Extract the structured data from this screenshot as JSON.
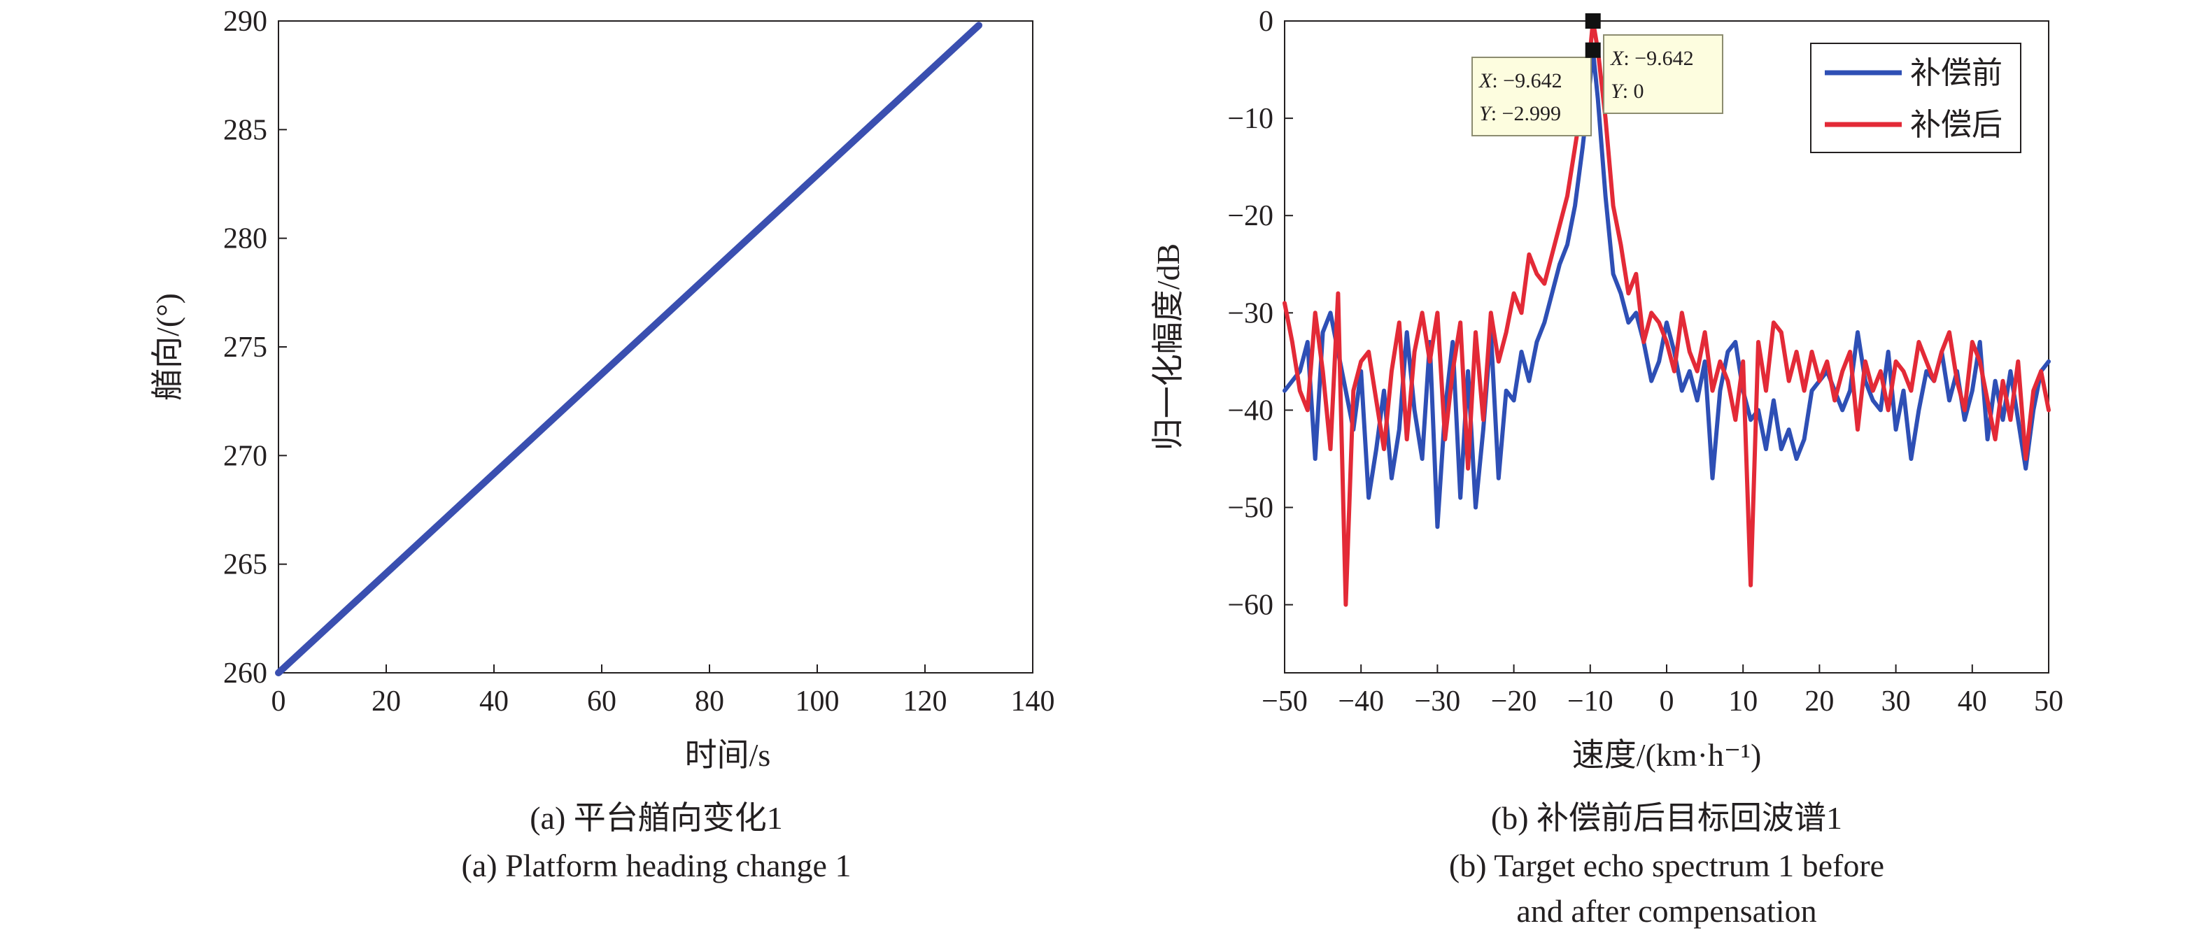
{
  "chart_data": [
    {
      "type": "line",
      "xlabel": "时间/s",
      "ylabel": "艏向/(°)",
      "xlim": [
        0,
        140
      ],
      "ylim": [
        260,
        290
      ],
      "x_ticks": [
        "0",
        "20",
        "40",
        "60",
        "80",
        "100",
        "120",
        "140"
      ],
      "y_ticks": [
        "260",
        "265",
        "270",
        "275",
        "280",
        "285",
        "290"
      ],
      "grid": false,
      "series": [
        {
          "color": "#3a4fb0",
          "x": [
            0,
            130
          ],
          "y": [
            260,
            289.8
          ]
        }
      ],
      "caption_zh": "(a) 平台艏向变化1",
      "caption_en": "(a) Platform heading change 1"
    },
    {
      "type": "line",
      "xlabel": "速度/(km·h⁻¹)",
      "ylabel": "归一化幅度/dB",
      "xlim": [
        -50,
        50
      ],
      "ylim": [
        -67,
        0
      ],
      "x_ticks": [
        "−50",
        "−40",
        "−30",
        "−20",
        "−10",
        "0",
        "10",
        "20",
        "30",
        "40",
        "50"
      ],
      "y_ticks": [
        "0",
        "−10",
        "−20",
        "−30",
        "−40",
        "−50",
        "−60"
      ],
      "grid": false,
      "legend_position": "top-right",
      "series": [
        {
          "name": "补偿前",
          "color": "#2e4fb5",
          "x": [
            -50,
            -49,
            -48,
            -47,
            -46,
            -45,
            -44,
            -43,
            -42,
            -41,
            -40,
            -39,
            -38,
            -37,
            -36,
            -35,
            -34,
            -33,
            -32,
            -31,
            -30,
            -29,
            -28,
            -27,
            -26,
            -25,
            -24,
            -23,
            -22,
            -21,
            -20,
            -19,
            -18,
            -17,
            -16,
            -15,
            -14,
            -13,
            -12,
            -11,
            -10,
            -9.642,
            -9,
            -8,
            -7,
            -6,
            -5,
            -4,
            -3,
            -2,
            -1,
            0,
            1,
            2,
            3,
            4,
            5,
            6,
            7,
            8,
            9,
            10,
            11,
            12,
            13,
            14,
            15,
            16,
            17,
            18,
            19,
            20,
            21,
            22,
            23,
            24,
            25,
            26,
            27,
            28,
            29,
            30,
            31,
            32,
            33,
            34,
            35,
            36,
            37,
            38,
            39,
            40,
            41,
            42,
            43,
            44,
            45,
            46,
            47,
            48,
            49,
            50
          ],
          "y": [
            -38,
            -37,
            -36,
            -33,
            -45,
            -32,
            -30,
            -34,
            -38,
            -42,
            -36,
            -49,
            -44,
            -38,
            -47,
            -42,
            -32,
            -40,
            -45,
            -33,
            -52,
            -40,
            -33,
            -49,
            -36,
            -50,
            -42,
            -32,
            -47,
            -38,
            -39,
            -34,
            -37,
            -33,
            -31,
            -28,
            -25,
            -23,
            -19,
            -13,
            -6,
            -3,
            -8,
            -18,
            -26,
            -28,
            -31,
            -30,
            -33,
            -37,
            -35,
            -31,
            -34,
            -38,
            -36,
            -39,
            -35,
            -47,
            -38,
            -34,
            -33,
            -38,
            -41,
            -40,
            -44,
            -39,
            -44,
            -42,
            -45,
            -43,
            -38,
            -37,
            -36,
            -38,
            -40,
            -38,
            -32,
            -37,
            -39,
            -40,
            -34,
            -42,
            -38,
            -45,
            -40,
            -36,
            -37,
            -34,
            -39,
            -36,
            -41,
            -38,
            -33,
            -43,
            -37,
            -41,
            -36,
            -41,
            -46,
            -40,
            -36,
            -35
          ]
        },
        {
          "name": "补偿后",
          "color": "#e32a37",
          "x": [
            -50,
            -49,
            -48,
            -47,
            -46,
            -45,
            -44,
            -43,
            -42,
            -41,
            -40,
            -39,
            -38,
            -37,
            -36,
            -35,
            -34,
            -33,
            -32,
            -31,
            -30,
            -29,
            -28,
            -27,
            -26,
            -25,
            -24,
            -23,
            -22,
            -21,
            -20,
            -19,
            -18,
            -17,
            -16,
            -15,
            -14,
            -13,
            -12,
            -11,
            -10,
            -9.642,
            -9,
            -8,
            -7,
            -6,
            -5,
            -4,
            -3,
            -2,
            -1,
            0,
            1,
            2,
            3,
            4,
            5,
            6,
            7,
            8,
            9,
            10,
            11,
            12,
            13,
            14,
            15,
            16,
            17,
            18,
            19,
            20,
            21,
            22,
            23,
            24,
            25,
            26,
            27,
            28,
            29,
            30,
            31,
            32,
            33,
            34,
            35,
            36,
            37,
            38,
            39,
            40,
            41,
            42,
            43,
            44,
            45,
            46,
            47,
            48,
            49,
            50
          ],
          "y": [
            -29,
            -33,
            -38,
            -40,
            -30,
            -36,
            -44,
            -28,
            -60,
            -38,
            -35,
            -34,
            -39,
            -44,
            -36,
            -31,
            -43,
            -34,
            -30,
            -35,
            -30,
            -43,
            -36,
            -31,
            -46,
            -32,
            -41,
            -30,
            -35,
            -32,
            -28,
            -30,
            -24,
            -26,
            -27,
            -24,
            -21,
            -18,
            -13,
            -8,
            -3,
            0,
            -3,
            -10,
            -19,
            -23,
            -28,
            -26,
            -33,
            -30,
            -31,
            -33,
            -36,
            -30,
            -34,
            -36,
            -32,
            -38,
            -35,
            -37,
            -41,
            -35,
            -58,
            -33,
            -38,
            -31,
            -32,
            -37,
            -34,
            -38,
            -34,
            -37,
            -35,
            -39,
            -36,
            -34,
            -42,
            -35,
            -38,
            -36,
            -40,
            -35,
            -36,
            -38,
            -33,
            -35,
            -37,
            -34,
            -32,
            -37,
            -40,
            -33,
            -35,
            -39,
            -43,
            -37,
            -41,
            -35,
            -45,
            -38,
            -36,
            -40
          ]
        }
      ],
      "annotations": [
        {
          "x": -9.642,
          "y": -2.999,
          "x_label": "X",
          "x_value": ": −9.642",
          "y_label": "Y",
          "y_value": ": −2.999"
        },
        {
          "x": -9.642,
          "y": 0,
          "x_label": "X",
          "x_value": ": −9.642",
          "y_label": "Y",
          "y_value": ": 0"
        }
      ],
      "caption_zh": "(b) 补偿前后目标回波谱1",
      "caption_en_line1": "(b) Target echo spectrum 1 before",
      "caption_en_line2": "and after compensation"
    }
  ]
}
